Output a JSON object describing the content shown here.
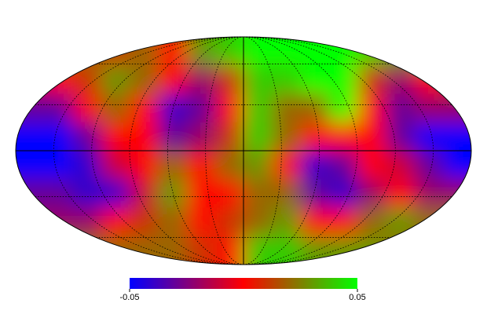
{
  "chart_data": {
    "type": "heatmap",
    "projection": "mollweide",
    "colormap": [
      "#0000ff",
      "#ff0000",
      "#00ff00"
    ],
    "clim": [
      -0.05,
      0.05
    ],
    "cticks": [
      -0.05,
      0.05
    ],
    "values": [
      [
        0.02,
        0.02,
        0.02,
        0.01,
        0.02,
        0,
        0.03,
        0.04,
        0.05,
        0.05,
        0.05,
        0.05,
        0.04,
        0.03,
        0.03,
        0.03
      ],
      [
        -0.01,
        0,
        0.01,
        0.03,
        0.02,
        0,
        -0.02,
        0.01,
        0.04,
        0.04,
        0.05,
        0.05,
        0.01,
        -0.02,
        0,
        0.01
      ],
      [
        -0.03,
        -0.03,
        0,
        0.02,
        0,
        -0.04,
        -0.03,
        0,
        0.04,
        0.02,
        0.02,
        0.05,
        0,
        -0.03,
        -0.02,
        -0.02
      ],
      [
        -0.05,
        -0.05,
        -0.03,
        0,
        0,
        -0.03,
        -0.02,
        0.01,
        0.04,
        0.02,
        0,
        0,
        0,
        -0.03,
        -0.05,
        -0.05
      ],
      [
        -0.05,
        -0.05,
        -0.04,
        -0.01,
        0,
        0.02,
        0,
        0.02,
        0.03,
        0,
        -0.04,
        -0.03,
        0,
        -0.01,
        -0.03,
        -0.05
      ],
      [
        -0.03,
        -0.03,
        -0.04,
        -0.04,
        -0.01,
        0.03,
        0,
        0,
        0.02,
        0.02,
        -0.03,
        -0.04,
        -0.02,
        0,
        -0.02,
        -0.02
      ],
      [
        -0.02,
        -0.02,
        -0.02,
        0,
        0.01,
        0.02,
        0,
        0.01,
        0.02,
        0.03,
        0,
        0,
        0.02,
        0.03,
        0.02,
        0.02
      ],
      [
        0.02,
        0.02,
        0.02,
        0.02,
        0.02,
        0.02,
        0.01,
        0,
        0.04,
        0.04,
        0.03,
        0.03,
        0.03,
        0.02,
        0.02,
        0.02
      ]
    ]
  }
}
